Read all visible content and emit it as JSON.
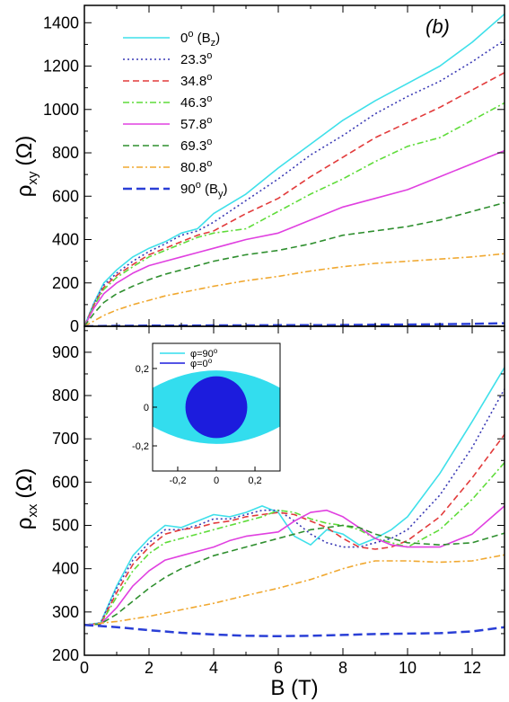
{
  "figure": {
    "panel_tag": "(b)"
  },
  "colors": {
    "c0": "#3fe0ea",
    "c23": "#3a3ab5",
    "c34": "#e23b3b",
    "c46": "#5fdc3a",
    "c57": "#e040e0",
    "c69": "#2f8f2f",
    "c80": "#f0a830",
    "c90": "#2a3fd6",
    "inset_fill_90": "#33ddee",
    "inset_fill_0": "#1c1cdd"
  },
  "chart_data": [
    {
      "type": "line",
      "id": "top",
      "ylabel_main": "ρ",
      "ylabel_sub": "xy",
      "ylabel_unit": "(Ω)",
      "xlim": [
        0,
        13
      ],
      "ylim": [
        0,
        1480
      ],
      "x_ticks": [
        0,
        2,
        4,
        6,
        8,
        10,
        12
      ],
      "y_ticks": [
        0,
        200,
        400,
        600,
        800,
        1000,
        1200,
        1400
      ],
      "series": [
        {
          "name": "0",
          "sup": "o",
          "suffix_main": " (B",
          "suffix_sub": "z",
          "suffix_end": ")",
          "color": "c0",
          "dash": "",
          "x": [
            0,
            0.3,
            0.6,
            1,
            1.5,
            2,
            2.5,
            3,
            3.5,
            4,
            5,
            6,
            7,
            8,
            9,
            10,
            11,
            12,
            13
          ],
          "y": [
            0,
            110,
            200,
            260,
            320,
            360,
            390,
            430,
            450,
            520,
            610,
            730,
            840,
            950,
            1040,
            1120,
            1200,
            1310,
            1440
          ]
        },
        {
          "name": "23.3",
          "sup": "o",
          "color": "c23",
          "dash": "2,3",
          "x": [
            0,
            0.3,
            0.6,
            1,
            1.5,
            2,
            2.5,
            3,
            3.5,
            4,
            5,
            6,
            7,
            8,
            9,
            10,
            11,
            12,
            13
          ],
          "y": [
            0,
            105,
            190,
            245,
            300,
            345,
            380,
            420,
            440,
            480,
            580,
            680,
            790,
            880,
            980,
            1060,
            1130,
            1220,
            1320
          ]
        },
        {
          "name": "34.8",
          "sup": "o",
          "color": "c34",
          "dash": "7,4",
          "x": [
            0,
            0.3,
            0.6,
            1,
            1.5,
            2,
            2.5,
            3,
            3.5,
            4,
            5,
            6,
            7,
            8,
            9,
            10,
            11,
            12,
            13
          ],
          "y": [
            0,
            100,
            180,
            235,
            285,
            330,
            360,
            390,
            420,
            440,
            520,
            590,
            690,
            780,
            870,
            940,
            1010,
            1090,
            1170
          ]
        },
        {
          "name": "46.3",
          "sup": "o",
          "color": "c46",
          "dash": "7,3,2,3",
          "x": [
            0,
            0.3,
            0.6,
            1,
            1.5,
            2,
            2.5,
            3,
            3.5,
            4,
            5,
            6,
            7,
            8,
            9,
            10,
            11,
            12,
            13
          ],
          "y": [
            0,
            95,
            170,
            225,
            275,
            320,
            350,
            380,
            410,
            430,
            450,
            530,
            610,
            680,
            760,
            830,
            870,
            950,
            1030
          ]
        },
        {
          "name": "57.8",
          "sup": "o",
          "color": "c57",
          "dash": "",
          "x": [
            0,
            0.3,
            0.6,
            1,
            1.5,
            2,
            2.5,
            3,
            3.5,
            4,
            5,
            6,
            7,
            8,
            9,
            10,
            11,
            12,
            13
          ],
          "y": [
            0,
            85,
            150,
            200,
            245,
            280,
            300,
            320,
            340,
            360,
            400,
            430,
            490,
            550,
            590,
            630,
            690,
            750,
            810
          ]
        },
        {
          "name": "69.3",
          "sup": "o",
          "color": "c69",
          "dash": "7,4",
          "x": [
            0,
            0.3,
            0.6,
            1,
            1.5,
            2,
            2.5,
            3,
            3.5,
            4,
            5,
            6,
            7,
            8,
            9,
            10,
            11,
            12,
            13
          ],
          "y": [
            0,
            60,
            110,
            150,
            185,
            215,
            240,
            260,
            280,
            300,
            330,
            350,
            380,
            420,
            440,
            460,
            490,
            530,
            570
          ]
        },
        {
          "name": "80.8",
          "sup": "o",
          "color": "c80",
          "dash": "7,3,2,3",
          "x": [
            0,
            0.3,
            0.6,
            1,
            1.5,
            2,
            2.5,
            3,
            3.5,
            4,
            5,
            6,
            7,
            8,
            9,
            10,
            11,
            12,
            13
          ],
          "y": [
            0,
            25,
            50,
            75,
            100,
            120,
            140,
            155,
            170,
            185,
            210,
            230,
            255,
            275,
            290,
            300,
            310,
            320,
            335
          ]
        },
        {
          "name": "90",
          "sup": "o",
          "suffix_main": " (B",
          "suffix_sub": "y",
          "suffix_end": ")",
          "color": "c90",
          "dash": "10,5",
          "width": 2.5,
          "x": [
            0,
            1,
            2,
            3,
            4,
            5,
            6,
            7,
            8,
            9,
            10,
            11,
            12,
            13
          ],
          "y": [
            0,
            2,
            3,
            3,
            4,
            4,
            5,
            5,
            6,
            7,
            8,
            9,
            11,
            14
          ]
        }
      ]
    },
    {
      "type": "line",
      "id": "bottom",
      "ylabel_main": "ρ",
      "ylabel_sub": "xx",
      "ylabel_unit": "(Ω)",
      "xlabel": "B (T)",
      "xlim": [
        0,
        13
      ],
      "ylim": [
        200,
        960
      ],
      "x_ticks": [
        0,
        2,
        4,
        6,
        8,
        10,
        12
      ],
      "y_ticks": [
        200,
        300,
        400,
        500,
        600,
        700,
        800,
        900
      ],
      "series": [
        {
          "name": "0",
          "color": "c0",
          "dash": "",
          "x": [
            0,
            0.5,
            1,
            1.5,
            2,
            2.5,
            3,
            3.5,
            4,
            4.5,
            5,
            5.5,
            6,
            6.5,
            7,
            7.5,
            8,
            8.5,
            9,
            9.5,
            10,
            11,
            12,
            13
          ],
          "y": [
            270,
            275,
            360,
            430,
            470,
            500,
            495,
            510,
            525,
            520,
            530,
            545,
            530,
            475,
            455,
            490,
            480,
            455,
            470,
            490,
            520,
            620,
            740,
            865
          ]
        },
        {
          "name": "23.3",
          "color": "c23",
          "dash": "2,3",
          "x": [
            0,
            0.5,
            1,
            1.5,
            2,
            2.5,
            3,
            3.5,
            4,
            4.5,
            5,
            5.5,
            6,
            6.5,
            7,
            7.5,
            8,
            8.5,
            9,
            9.5,
            10,
            11,
            12,
            13
          ],
          "y": [
            270,
            275,
            355,
            420,
            460,
            490,
            490,
            500,
            515,
            515,
            525,
            535,
            535,
            510,
            480,
            460,
            450,
            450,
            460,
            470,
            490,
            570,
            680,
            815
          ]
        },
        {
          "name": "34.8",
          "color": "c34",
          "dash": "7,4",
          "x": [
            0,
            0.5,
            1,
            1.5,
            2,
            2.5,
            3,
            3.5,
            4,
            4.5,
            5,
            5.5,
            6,
            6.5,
            7,
            7.5,
            8,
            8.5,
            9,
            9.5,
            10,
            11,
            12,
            13
          ],
          "y": [
            270,
            272,
            345,
            410,
            450,
            480,
            490,
            495,
            505,
            510,
            520,
            525,
            530,
            525,
            510,
            495,
            470,
            450,
            445,
            450,
            465,
            520,
            610,
            710
          ]
        },
        {
          "name": "46.3",
          "color": "c46",
          "dash": "7,3,2,3",
          "x": [
            0,
            0.5,
            1,
            1.5,
            2,
            2.5,
            3,
            3.5,
            4,
            4.5,
            5,
            5.5,
            6,
            6.5,
            7,
            7.5,
            8,
            8.5,
            9,
            9.5,
            10,
            11,
            12,
            13
          ],
          "y": [
            270,
            272,
            335,
            395,
            435,
            460,
            470,
            480,
            490,
            500,
            510,
            520,
            535,
            530,
            515,
            505,
            500,
            490,
            470,
            460,
            450,
            490,
            560,
            645
          ]
        },
        {
          "name": "57.8",
          "color": "c57",
          "dash": "",
          "x": [
            0,
            0.5,
            1,
            1.5,
            2,
            2.5,
            3,
            3.5,
            4,
            4.5,
            5,
            5.5,
            6,
            6.5,
            7,
            7.5,
            8,
            8.5,
            9,
            9.5,
            10,
            11,
            12,
            13
          ],
          "y": [
            270,
            272,
            310,
            360,
            395,
            420,
            430,
            440,
            450,
            465,
            475,
            480,
            485,
            510,
            530,
            535,
            520,
            495,
            470,
            455,
            450,
            450,
            480,
            545
          ]
        },
        {
          "name": "69.3",
          "color": "c69",
          "dash": "7,4",
          "x": [
            0,
            0.5,
            1,
            1.5,
            2,
            2.5,
            3,
            3.5,
            4,
            4.5,
            5,
            5.5,
            6,
            6.5,
            7,
            7.5,
            8,
            8.5,
            9,
            9.5,
            10,
            11,
            12,
            13
          ],
          "y": [
            270,
            272,
            295,
            325,
            355,
            380,
            400,
            415,
            430,
            440,
            450,
            460,
            470,
            480,
            490,
            495,
            500,
            495,
            480,
            470,
            460,
            455,
            460,
            482
          ]
        },
        {
          "name": "80.8",
          "color": "c80",
          "dash": "7,3,2,3",
          "x": [
            0,
            1,
            2,
            3,
            4,
            5,
            6,
            7,
            8,
            8.5,
            9,
            10,
            11,
            12,
            13
          ],
          "y": [
            270,
            278,
            290,
            305,
            320,
            338,
            355,
            375,
            400,
            410,
            418,
            418,
            415,
            418,
            432
          ]
        },
        {
          "name": "90",
          "color": "c90",
          "dash": "10,5",
          "width": 2.5,
          "x": [
            0,
            1,
            2,
            3,
            4,
            5,
            6,
            7,
            8,
            9,
            10,
            11,
            12,
            12.5,
            13
          ],
          "y": [
            270,
            265,
            258,
            252,
            248,
            245,
            244,
            245,
            247,
            249,
            250,
            251,
            255,
            260,
            265
          ]
        }
      ]
    },
    {
      "type": "area",
      "id": "inset",
      "xlim": [
        -0.33,
        0.33
      ],
      "ylim": [
        -0.33,
        0.33
      ],
      "x_ticks": [
        -0.2,
        0,
        0.2
      ],
      "y_ticks": [
        -0.2,
        0,
        0.2
      ],
      "x_tick_labels": [
        "-0,2",
        "0",
        "0,2"
      ],
      "y_tick_labels": [
        "-0,2",
        "0",
        "0,2"
      ],
      "series": [
        {
          "name": "φ=90",
          "sup": "o",
          "color": "inset_fill_90",
          "shape": "lens",
          "half_width_x": 0.33,
          "half_height_center": 0.19,
          "half_height_edge": 0.1
        },
        {
          "name": "φ=0",
          "sup": "o",
          "color": "inset_fill_0",
          "shape": "circle",
          "radius": 0.16
        }
      ]
    }
  ]
}
